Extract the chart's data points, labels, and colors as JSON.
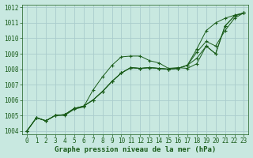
{
  "title": "Graphe pression niveau de la mer (hPa)",
  "background_color": "#c8e8e0",
  "plot_bg_color": "#c8e8e0",
  "grid_color": "#aacccc",
  "line_color": "#1a5c1a",
  "marker_color": "#1a5c1a",
  "xlim": [
    -0.5,
    23.5
  ],
  "ylim": [
    1003.8,
    1012.2
  ],
  "xticks": [
    0,
    1,
    2,
    3,
    4,
    5,
    6,
    7,
    8,
    9,
    10,
    11,
    12,
    13,
    14,
    15,
    16,
    17,
    18,
    19,
    20,
    21,
    22,
    23
  ],
  "yticks": [
    1004,
    1005,
    1006,
    1007,
    1008,
    1009,
    1010,
    1011,
    1012
  ],
  "series": [
    [
      1004.0,
      1004.85,
      1004.65,
      1005.0,
      1005.0,
      1005.4,
      1005.55,
      1006.65,
      1007.5,
      1008.25,
      1008.8,
      1008.85,
      1008.85,
      1008.55,
      1008.4,
      1008.05,
      1008.1,
      1008.05,
      1008.35,
      1009.5,
      1009.0,
      1010.8,
      1011.45,
      1011.65
    ],
    [
      1004.0,
      1004.85,
      1004.65,
      1005.0,
      1005.05,
      1005.45,
      1005.6,
      1006.0,
      1006.55,
      1007.2,
      1007.75,
      1008.1,
      1008.05,
      1008.1,
      1008.05,
      1008.0,
      1008.05,
      1008.25,
      1008.7,
      1009.5,
      1009.0,
      1010.8,
      1011.45,
      1011.65
    ],
    [
      1004.0,
      1004.85,
      1004.65,
      1005.0,
      1005.05,
      1005.45,
      1005.6,
      1006.0,
      1006.55,
      1007.2,
      1007.75,
      1008.1,
      1008.05,
      1008.1,
      1008.05,
      1008.0,
      1008.05,
      1008.25,
      1009.3,
      1010.5,
      1011.0,
      1011.3,
      1011.5,
      1011.65
    ],
    [
      1004.0,
      1004.85,
      1004.65,
      1005.0,
      1005.05,
      1005.45,
      1005.6,
      1006.0,
      1006.55,
      1007.2,
      1007.75,
      1008.1,
      1008.05,
      1008.1,
      1008.05,
      1008.0,
      1008.05,
      1008.25,
      1009.1,
      1009.8,
      1009.5,
      1010.5,
      1011.3,
      1011.65
    ]
  ],
  "tick_fontsize": 5.5,
  "xlabel_fontsize": 6.5
}
